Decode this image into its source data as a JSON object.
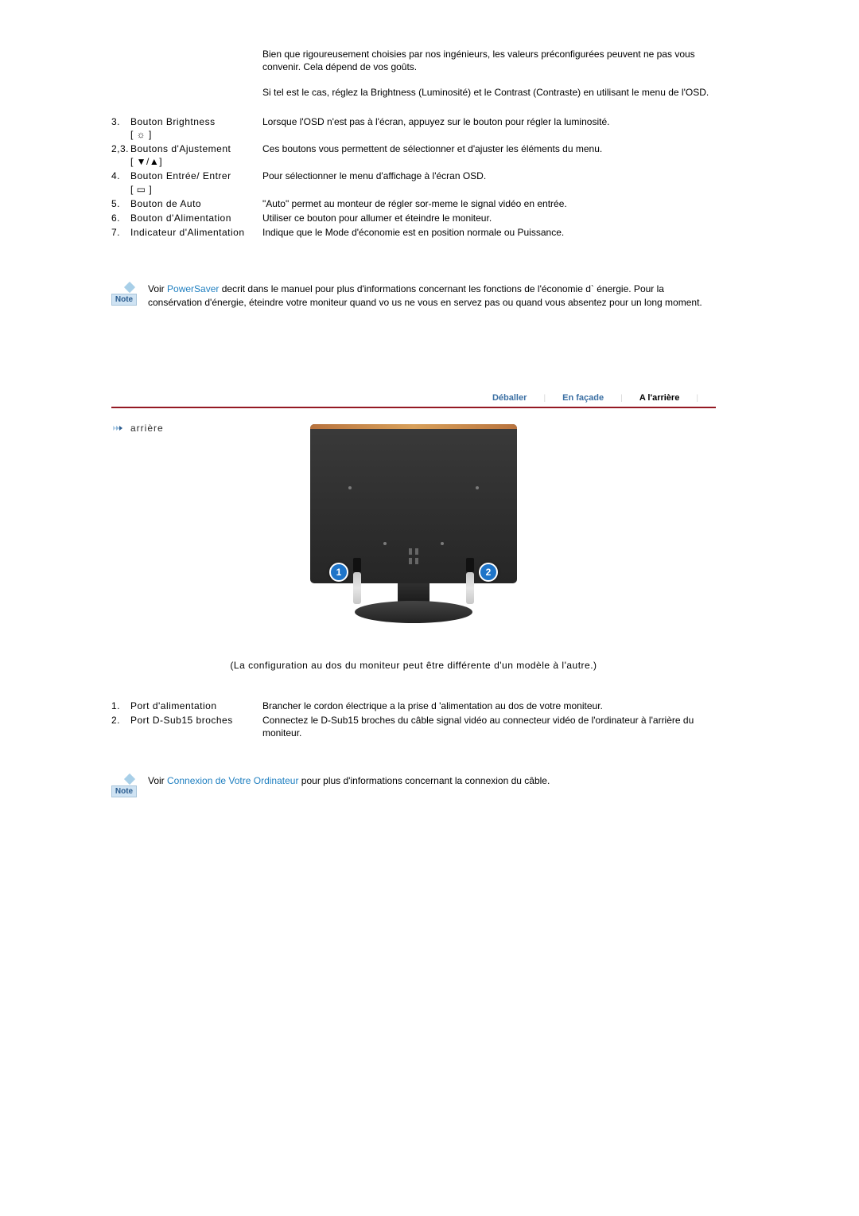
{
  "intro": {
    "p1": "Bien que rigoureusement choisies par nos ingénieurs, les valeurs préconfigurées peuvent ne pas vous convenir. Cela dépend de vos goûts.",
    "p2": "Si tel est le cas, réglez la Brightness (Luminosité) et le Contrast (Contraste) en utilisant le menu de l'OSD."
  },
  "features": [
    {
      "num": "3.",
      "label": "Bouton Brightness",
      "symbol": "[ ☼ ]",
      "desc": "Lorsque l'OSD n'est pas à l'écran, appuyez sur le bouton pour régler la luminosité."
    },
    {
      "num": "2,3.",
      "label": "Boutons d'Ajustement",
      "symbol": "[ ▼/▲]",
      "desc": "Ces boutons vous permettent de sélectionner et d'ajuster les éléments du menu."
    },
    {
      "num": "4.",
      "label": "Bouton Entrée/ Entrer",
      "symbol": "[ ▭ ]",
      "desc": "Pour sélectionner le menu d'affichage à l'écran OSD."
    },
    {
      "num": "5.",
      "label": "Bouton de Auto",
      "symbol": "",
      "desc": "\"Auto\" permet au monteur de régler sor-meme le signal vidéo en entrée."
    },
    {
      "num": "6.",
      "label": "Bouton d'Alimentation",
      "symbol": "",
      "desc": "Utiliser ce bouton pour allumer et éteindre le moniteur."
    },
    {
      "num": "7.",
      "label": "Indicateur d'Alimentation",
      "symbol": "",
      "desc": "Indique que le Mode d'économie est en position normale ou Puissance."
    }
  ],
  "note1": {
    "badge": "Note",
    "prefix": "Voir ",
    "link": "PowerSaver",
    "suffix": " decrit dans le manuel pour plus d'informations concernant les fonctions de l'économie d` énergie. Pour la consérvation d'énergie, éteindre votre moniteur quand vo us ne vous en servez pas ou quand vous absentez pour un long moment."
  },
  "tabs": {
    "t1": "Déballer",
    "t2": "En façade",
    "t3": "A l'arrière"
  },
  "sectionTitle": "arrière",
  "callouts": {
    "c1": "1",
    "c2": "2"
  },
  "caption": "(La configuration au dos du moniteur peut être différente d'un modèle à l'autre.)",
  "ports": [
    {
      "num": "1.",
      "label": "Port d'alimentation",
      "desc": "Brancher le cordon électrique a la prise d 'alimentation au dos de votre moniteur."
    },
    {
      "num": "2.",
      "label": "Port D-Sub15 broches",
      "desc": "Connectez le D-Sub15 broches du câble signal vidéo au connecteur vidéo de l'ordinateur à l'arrière du moniteur."
    }
  ],
  "note2": {
    "badge": "Note",
    "prefix": "Voir ",
    "link": "Connexion de Votre Ordinateur",
    "suffix": " pour plus d'informations concernant la connexion du câble."
  }
}
